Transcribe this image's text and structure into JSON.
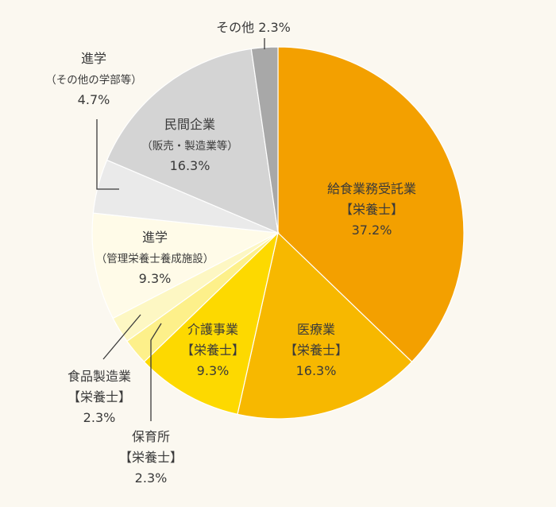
{
  "chart_data": {
    "type": "pie",
    "start": "top",
    "direction": "clockwise",
    "slices": [
      {
        "lines": [
          "給食業務受託業",
          "【栄養士】",
          "37.2%"
        ],
        "value": 37.2,
        "color": "#f3a000"
      },
      {
        "lines": [
          "医療業",
          "【栄養士】",
          "16.3%"
        ],
        "value": 16.3,
        "color": "#f7b800"
      },
      {
        "lines": [
          "介護事業",
          "【栄養士】",
          "9.3%"
        ],
        "value": 9.3,
        "color": "#fdd900"
      },
      {
        "lines": [
          "保育所",
          "【栄養士】",
          "2.3%"
        ],
        "value": 2.3,
        "color": "#fdf08a"
      },
      {
        "lines": [
          "食品製造業",
          "【栄養士】",
          "2.3%"
        ],
        "value": 2.3,
        "color": "#fdf7c3"
      },
      {
        "lines": [
          "進学",
          "（管理栄養士養成施設）",
          "9.3%"
        ],
        "value": 9.3,
        "color": "#fffbe8"
      },
      {
        "lines": [
          "進学",
          "（その他の学部等）",
          "4.7%"
        ],
        "value": 4.7,
        "color": "#eaeaea"
      },
      {
        "lines": [
          "民間企業",
          "（販売・製造業等）",
          "16.3%"
        ],
        "value": 16.3,
        "color": "#d4d4d4"
      },
      {
        "lines": [
          "その他",
          "2.3%"
        ],
        "value": 2.3,
        "color": "#a8a8a8"
      }
    ]
  }
}
